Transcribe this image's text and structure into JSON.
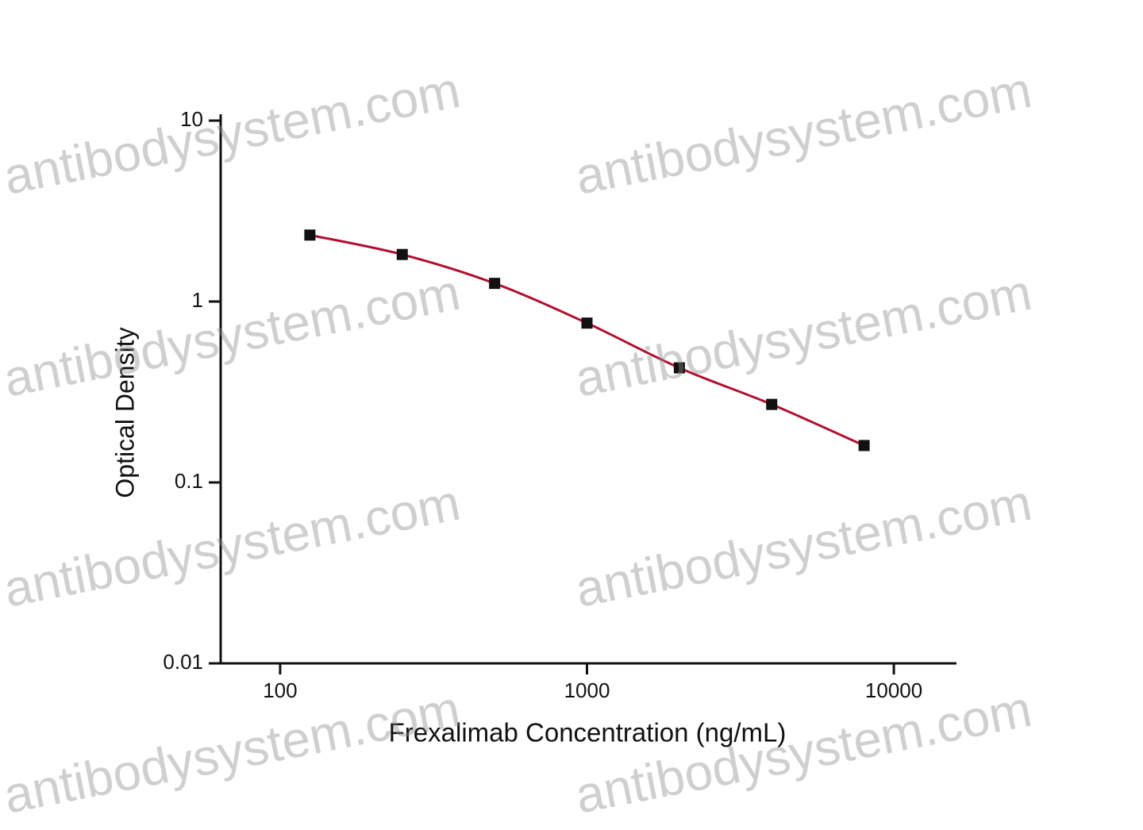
{
  "chart_data": {
    "type": "scatter",
    "xlabel": "Frexalimab Concentration (ng/mL)",
    "ylabel": "Optical Density",
    "x": [
      125,
      250,
      500,
      1000,
      2000,
      4000,
      8000
    ],
    "series": [
      {
        "color": "#111111",
        "line_color": "#b01030",
        "values": [
          2.33,
          1.82,
          1.26,
          0.76,
          0.43,
          0.27,
          0.16
        ]
      }
    ],
    "xscale": "log",
    "yscale": "log",
    "xlim": [
      64,
      16000
    ],
    "ylim": [
      0.01,
      10
    ],
    "xticks": [
      100,
      1000,
      10000
    ],
    "yticks": [
      0.01,
      0.1,
      1,
      10
    ],
    "fit_line": true,
    "watermark": "antibodysystem.com"
  }
}
